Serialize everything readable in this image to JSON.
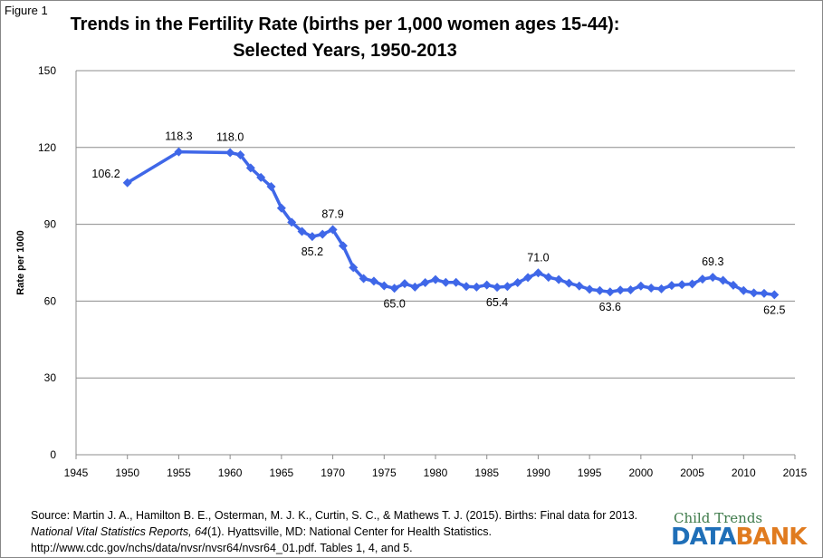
{
  "figure_label": "Figure 1",
  "chart_data": {
    "type": "line",
    "title": [
      "Trends in the Fertility Rate (births per 1,000 women ages 15-44):",
      "Selected Years, 1950-2013"
    ],
    "xlabel": "",
    "ylabel": "Rate per 1000",
    "xlim": [
      1945,
      2015
    ],
    "ylim": [
      0,
      150
    ],
    "xticks": [
      1945,
      1950,
      1955,
      1960,
      1965,
      1970,
      1975,
      1980,
      1985,
      1990,
      1995,
      2000,
      2005,
      2010,
      2015
    ],
    "yticks": [
      0,
      30,
      60,
      90,
      120,
      150
    ],
    "grid": "horizontal",
    "color": "#3f67e8",
    "x": [
      1950,
      1955,
      1960,
      1961,
      1962,
      1963,
      1964,
      1965,
      1966,
      1967,
      1968,
      1969,
      1970,
      1971,
      1972,
      1973,
      1974,
      1975,
      1976,
      1977,
      1978,
      1979,
      1980,
      1981,
      1982,
      1983,
      1984,
      1985,
      1986,
      1987,
      1988,
      1989,
      1990,
      1991,
      1992,
      1993,
      1994,
      1995,
      1996,
      1997,
      1998,
      1999,
      2000,
      2001,
      2002,
      2003,
      2004,
      2005,
      2006,
      2007,
      2008,
      2009,
      2010,
      2011,
      2012,
      2013
    ],
    "y": [
      106.2,
      118.3,
      118.0,
      117.1,
      112.0,
      108.3,
      104.7,
      96.3,
      90.8,
      87.2,
      85.2,
      86.1,
      87.9,
      81.6,
      73.1,
      68.8,
      67.8,
      66.0,
      65.0,
      66.8,
      65.5,
      67.2,
      68.4,
      67.3,
      67.3,
      65.7,
      65.5,
      66.3,
      65.4,
      65.7,
      67.2,
      69.2,
      71.0,
      69.3,
      68.4,
      67.0,
      65.9,
      64.6,
      64.1,
      63.6,
      64.3,
      64.4,
      65.9,
      65.1,
      64.8,
      66.1,
      66.4,
      66.7,
      68.6,
      69.3,
      68.1,
      66.2,
      64.1,
      63.2,
      63.0,
      62.5
    ],
    "annotations": [
      {
        "x": 1950,
        "y": 106.2,
        "text": "106.2",
        "pos": "left"
      },
      {
        "x": 1955,
        "y": 118.3,
        "text": "118.3",
        "pos": "above"
      },
      {
        "x": 1960,
        "y": 118.0,
        "text": "118.0",
        "pos": "above"
      },
      {
        "x": 1968,
        "y": 85.2,
        "text": "85.2",
        "pos": "below"
      },
      {
        "x": 1970,
        "y": 87.9,
        "text": "87.9",
        "pos": "above"
      },
      {
        "x": 1976,
        "y": 65.0,
        "text": "65.0",
        "pos": "below"
      },
      {
        "x": 1986,
        "y": 65.4,
        "text": "65.4",
        "pos": "below"
      },
      {
        "x": 1990,
        "y": 71.0,
        "text": "71.0",
        "pos": "above"
      },
      {
        "x": 1997,
        "y": 63.6,
        "text": "63.6",
        "pos": "below"
      },
      {
        "x": 2007,
        "y": 69.3,
        "text": "69.3",
        "pos": "above"
      },
      {
        "x": 2013,
        "y": 62.5,
        "text": "62.5",
        "pos": "below"
      }
    ]
  },
  "source": {
    "line1": "Source: Martin J. A., Hamilton B. E., Osterman, M. J. K., Curtin, S. C., & Mathews T. J. (2015). Births: Final data for 2013.",
    "line2_italic": "National Vital Statistics Reports, 64",
    "line2_rest": "(1). Hyattsville, MD: National Center for Health Statistics.",
    "line3": "http://www.cdc.gov/nchs/data/nvsr/nvsr64/nvsr64_01.pdf.  Tables 1, 4, and 5."
  },
  "logo": {
    "top": "Child Trends",
    "data": "DATA",
    "bank": "BANK"
  }
}
